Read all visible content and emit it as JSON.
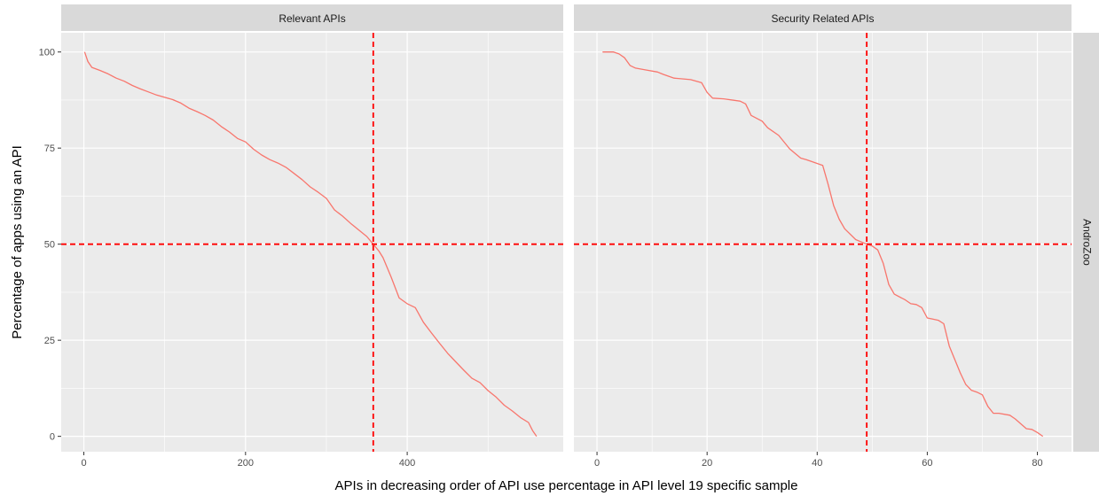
{
  "chart_data": {
    "type": "line",
    "xlabel": "APIs in decreasing order of API use percentage in API level 19 specific sample",
    "ylabel": "Percentage of apps using an API",
    "row_strip": "AndroZoo",
    "colors": {
      "line": "#f8766d",
      "reference": "#ff0000",
      "panel_bg": "#ebebeb",
      "strip_bg": "#d9d9d9",
      "grid": "#ffffff"
    },
    "y_ticks": [
      "0",
      "25",
      "50",
      "75",
      "100"
    ],
    "y_tick_values": [
      0,
      25,
      50,
      75,
      100
    ],
    "ylim": [
      -4,
      105
    ],
    "hline": 50,
    "panels": [
      {
        "title": "Relevant APIs",
        "xlim": [
          -28,
          593
        ],
        "x_ticks": [
          "0",
          "200",
          "400"
        ],
        "x_tick_values": [
          0,
          200,
          400
        ],
        "vline": 358,
        "series": {
          "x": [
            1,
            5,
            10,
            20,
            30,
            40,
            50,
            60,
            70,
            80,
            90,
            100,
            110,
            120,
            130,
            140,
            150,
            160,
            170,
            180,
            190,
            200,
            210,
            220,
            230,
            240,
            250,
            260,
            270,
            280,
            290,
            300,
            310,
            320,
            330,
            340,
            350,
            358,
            365,
            370,
            380,
            390,
            400,
            410,
            420,
            430,
            440,
            450,
            460,
            470,
            480,
            490,
            500,
            510,
            520,
            530,
            540,
            550,
            555,
            560
          ],
          "y": [
            100,
            97.5,
            96,
            95.2,
            94.3,
            93.2,
            92.4,
            91.3,
            90.4,
            89.6,
            88.8,
            88.2,
            87.6,
            86.7,
            85.4,
            84.5,
            83.5,
            82.3,
            80.6,
            79.2,
            77.5,
            76.6,
            74.7,
            73.2,
            72,
            71.1,
            70,
            68.4,
            66.8,
            64.9,
            63.5,
            61.9,
            58.9,
            57.3,
            55.4,
            53.7,
            52,
            50,
            48.2,
            46.5,
            41.5,
            36,
            34.5,
            33.5,
            29.7,
            26.9,
            24.2,
            21.6,
            19.4,
            17.2,
            15.1,
            14,
            11.9,
            10.2,
            8.1,
            6.6,
            4.9,
            3.6,
            1.5,
            0
          ]
        }
      },
      {
        "title": "Security Related APIs",
        "xlim": [
          -4.2,
          86.2
        ],
        "x_ticks": [
          "0",
          "20",
          "40",
          "60",
          "80"
        ],
        "x_tick_values": [
          0,
          20,
          40,
          60,
          80
        ],
        "vline": 49,
        "series": {
          "x": [
            1,
            3,
            4,
            5,
            6,
            7,
            9,
            11,
            12,
            14,
            17,
            19,
            20,
            21,
            23,
            26,
            27,
            28,
            30,
            31,
            33,
            35,
            37,
            38,
            39,
            41,
            42,
            43,
            44,
            45,
            47,
            49,
            50,
            51,
            52,
            53,
            54,
            56,
            57,
            58,
            59,
            60,
            61,
            62,
            63,
            64,
            65,
            66,
            67,
            68,
            69,
            70,
            71,
            72,
            73,
            75,
            76,
            78,
            79,
            80,
            81
          ],
          "y": [
            100,
            100,
            99.5,
            98.5,
            96.5,
            95.8,
            95.3,
            94.8,
            94.2,
            93.2,
            92.8,
            92,
            89.5,
            88,
            87.8,
            87.2,
            86.5,
            83.5,
            82,
            80.3,
            78.3,
            74.8,
            72.4,
            72,
            71.5,
            70.5,
            65.5,
            60,
            56.5,
            54,
            51.2,
            50,
            49.5,
            48.5,
            45,
            39.5,
            37,
            35.5,
            34.5,
            34.3,
            33.5,
            30.8,
            30.5,
            30.2,
            29.3,
            23.5,
            20,
            16.5,
            13.5,
            12,
            11.5,
            10.8,
            7.8,
            6,
            6,
            5.5,
            4.5,
            2,
            1.8,
            1,
            0
          ]
        }
      }
    ]
  }
}
